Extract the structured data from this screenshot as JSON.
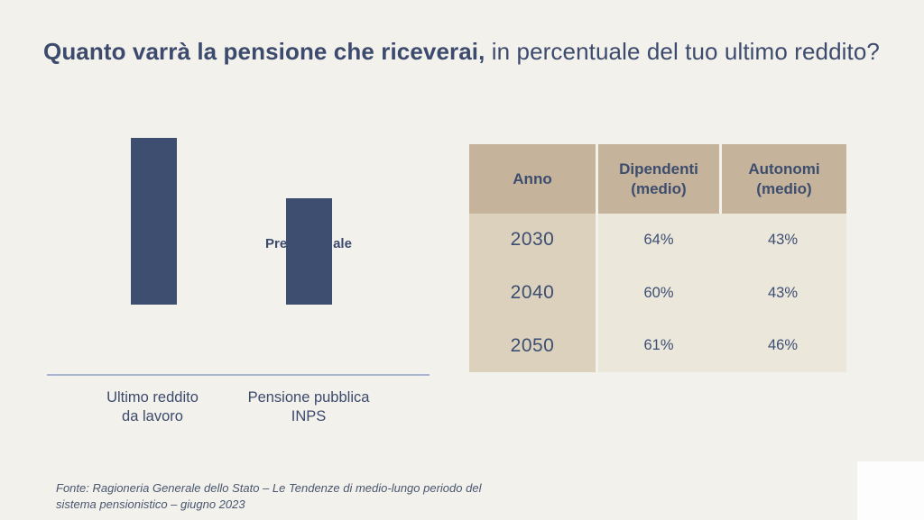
{
  "title": {
    "bold": "Quanto varrà la pensione che riceverai,",
    "regular": " in percentuale del tuo ultimo reddito?"
  },
  "chart": {
    "gap_label": "Gap\nPrevidenziale",
    "bar_labels": [
      "Ultimo reddito\nda lavoro",
      "Pensione pubblica\nINPS"
    ]
  },
  "footer": {
    "source": "Fonte: Ragioneria Generale dello Stato – Le Tendenze di medio-lungo periodo del\nsistema pensionistico – giugno 2023"
  },
  "colors": {
    "background": "#f3f1ec",
    "navy_text": "#3c4a6d",
    "bar_fill": "#3e4e71",
    "baseline": "#a9b6d3",
    "table_header_bg": "#c5b49b",
    "table_year_column_bg": "#dcd1bc",
    "table_data_bg": "#ece7db"
  },
  "chart_data": [
    {
      "type": "bar",
      "categories": [
        "Ultimo reddito da lavoro",
        "Pensione pubblica INPS"
      ],
      "values": [
        100,
        64
      ],
      "title": "",
      "xlabel": "",
      "ylabel": "",
      "ylim": [
        0,
        100
      ],
      "grid": false,
      "axes_visible": false,
      "annotation": "Gap Previdenziale",
      "bar_color": "#3e4e71"
    },
    {
      "type": "table",
      "columns": [
        "Anno",
        "Dipendenti (medio)",
        "Autonomi (medio)"
      ],
      "rows": [
        [
          "2030",
          "64%",
          "43%"
        ],
        [
          "2040",
          "60%",
          "43%"
        ],
        [
          "2050",
          "61%",
          "46%"
        ]
      ]
    }
  ]
}
